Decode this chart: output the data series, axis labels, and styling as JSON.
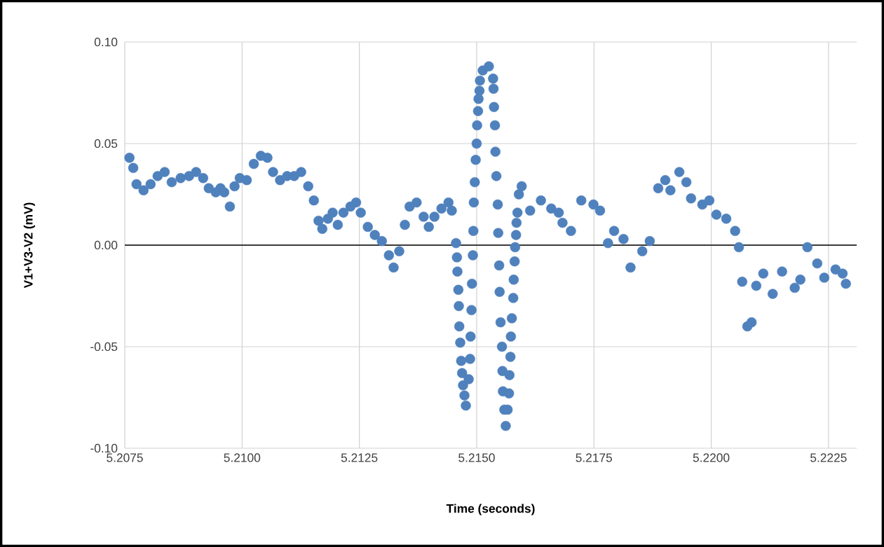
{
  "chart_data": {
    "type": "scatter",
    "xlabel": "Time (seconds)",
    "ylabel": "V1+V3-V2 (mV)",
    "xlim": [
      5.2075,
      5.2231
    ],
    "ylim": [
      -0.1,
      0.1
    ],
    "xticks": [
      5.2075,
      {
        "value": 5.21,
        "label": "5.2100"
      },
      5.2125,
      {
        "value": 5.215,
        "label": "5.2150"
      },
      5.2175,
      {
        "value": 5.22,
        "label": "5.2200"
      },
      5.2225
    ],
    "yticks": [
      {
        "value": -0.1,
        "label": "-0.10"
      },
      {
        "value": -0.05,
        "label": "-0.05"
      },
      {
        "value": 0,
        "label": "0.00"
      },
      {
        "value": 0.05,
        "label": "0.05"
      },
      {
        "value": 0.1,
        "label": "0.10"
      }
    ],
    "grid": true,
    "marker": "circle",
    "ref_lines": [
      {
        "axis": "y",
        "value": 0,
        "color": "#000000"
      }
    ],
    "series": [
      {
        "color": "#4f81bd",
        "x": [
          5.2076,
          5.20768,
          5.20775,
          5.2079,
          5.20805,
          5.2082,
          5.20835,
          5.2085,
          5.20869,
          5.20887,
          5.20902,
          5.20917,
          5.20929,
          5.20944,
          5.20954,
          5.20962,
          5.20974,
          5.20984,
          5.20995,
          5.2101,
          5.21025,
          5.2104,
          5.21054,
          5.21066,
          5.21081,
          5.21096,
          5.21111,
          5.21126,
          5.21141,
          5.21153,
          5.21163,
          5.21171,
          5.21183,
          5.21193,
          5.21204,
          5.21216,
          5.21231,
          5.21243,
          5.21253,
          5.21268,
          5.21283,
          5.21298,
          5.21313,
          5.21323,
          5.21335,
          5.21347,
          5.21357,
          5.21372,
          5.21387,
          5.21398,
          5.2141,
          5.21425,
          5.2144,
          5.21447,
          5.21456,
          5.21458,
          5.21459,
          5.21461,
          5.21462,
          5.21463,
          5.21465,
          5.21467,
          5.21469,
          5.21471,
          5.21474,
          5.21477,
          5.21483,
          5.21486,
          5.21487,
          5.21489,
          5.2149,
          5.21492,
          5.21493,
          5.21494,
          5.21496,
          5.21498,
          5.215,
          5.21501,
          5.21503,
          5.21504,
          5.21506,
          5.21507,
          5.21513,
          5.21526,
          5.21535,
          5.21536,
          5.21537,
          5.21539,
          5.2154,
          5.21542,
          5.21545,
          5.21546,
          5.21548,
          5.21549,
          5.21551,
          5.21554,
          5.21555,
          5.21556,
          5.21559,
          5.21562,
          5.21566,
          5.21569,
          5.2157,
          5.21572,
          5.21573,
          5.21575,
          5.21578,
          5.21579,
          5.21581,
          5.21582,
          5.21584,
          5.21585,
          5.21587,
          5.2159,
          5.21596,
          5.21614,
          5.21637,
          5.21659,
          5.21675,
          5.21683,
          5.21701,
          5.21723,
          5.21749,
          5.21763,
          5.2178,
          5.21793,
          5.21813,
          5.21828,
          5.21853,
          5.21869,
          5.21887,
          5.21902,
          5.21913,
          5.21932,
          5.21947,
          5.21957,
          5.21981,
          5.21996,
          5.22011,
          5.22032,
          5.22051,
          5.22059,
          5.22066,
          5.22077,
          5.22086,
          5.22096,
          5.22111,
          5.22131,
          5.22151,
          5.22178,
          5.2219,
          5.22205,
          5.22226,
          5.22241,
          5.22265,
          5.2228,
          5.22287
        ],
        "values": [
          0.043,
          0.038,
          0.03,
          0.027,
          0.03,
          0.034,
          0.036,
          0.031,
          0.033,
          0.034,
          0.036,
          0.033,
          0.028,
          0.026,
          0.028,
          0.026,
          0.019,
          0.029,
          0.033,
          0.032,
          0.04,
          0.044,
          0.043,
          0.036,
          0.032,
          0.034,
          0.034,
          0.036,
          0.029,
          0.022,
          0.012,
          0.008,
          0.013,
          0.016,
          0.01,
          0.016,
          0.019,
          0.021,
          0.016,
          0.009,
          0.005,
          0.002,
          -0.005,
          -0.011,
          -0.003,
          0.01,
          0.019,
          0.021,
          0.014,
          0.009,
          0.014,
          0.018,
          0.021,
          0.017,
          0.001,
          -0.006,
          -0.013,
          -0.022,
          -0.03,
          -0.04,
          -0.048,
          -0.057,
          -0.063,
          -0.069,
          -0.074,
          -0.079,
          -0.066,
          -0.056,
          -0.045,
          -0.032,
          -0.019,
          -0.005,
          0.007,
          0.021,
          0.031,
          0.042,
          0.05,
          0.059,
          0.066,
          0.072,
          0.076,
          0.081,
          0.086,
          0.088,
          0.082,
          0.077,
          0.068,
          0.059,
          0.046,
          0.034,
          0.02,
          0.006,
          -0.01,
          -0.023,
          -0.038,
          -0.05,
          -0.062,
          -0.072,
          -0.081,
          -0.089,
          -0.081,
          -0.073,
          -0.064,
          -0.055,
          -0.045,
          -0.036,
          -0.026,
          -0.017,
          -0.008,
          -0.001,
          0.005,
          0.011,
          0.016,
          0.025,
          0.029,
          0.017,
          0.022,
          0.018,
          0.016,
          0.011,
          0.007,
          0.022,
          0.02,
          0.017,
          0.001,
          0.007,
          0.003,
          -0.011,
          -0.003,
          0.002,
          0.028,
          0.032,
          0.027,
          0.036,
          0.031,
          0.023,
          0.02,
          0.022,
          0.015,
          0.013,
          0.007,
          -0.001,
          -0.018,
          -0.04,
          -0.038,
          -0.02,
          -0.014,
          -0.024,
          -0.013,
          -0.021,
          -0.017,
          -0.001,
          -0.009,
          -0.016,
          -0.012,
          -0.014,
          -0.019
        ]
      }
    ]
  }
}
